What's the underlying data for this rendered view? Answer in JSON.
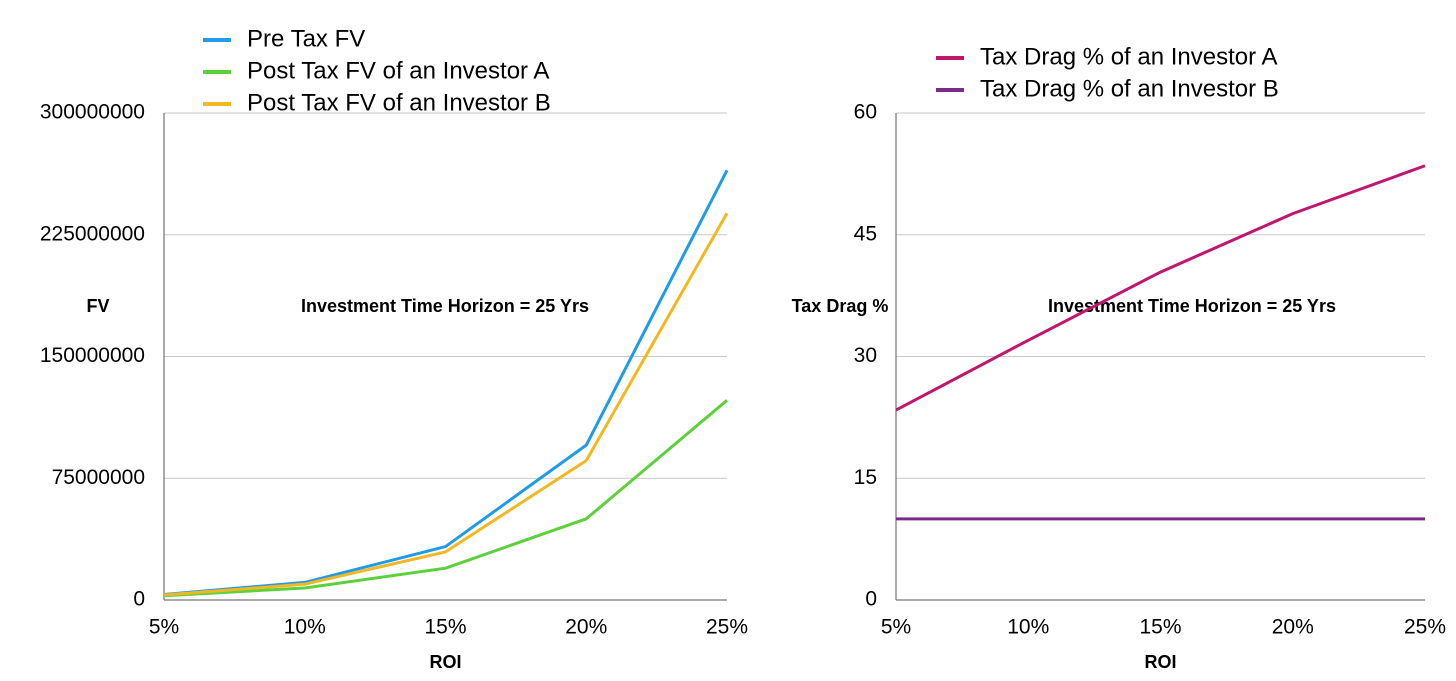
{
  "chart_data": [
    {
      "type": "line",
      "x_label": "ROI",
      "y_label": "FV",
      "annotation": "Investment Time Horizon = 25 Yrs",
      "categories": [
        "5%",
        "10%",
        "15%",
        "20%",
        "25%"
      ],
      "series": [
        {
          "name": "Pre Tax FV",
          "color": "#1f9be8",
          "values": [
            3390000,
            10830000,
            32920000,
            95400000,
            264700000
          ]
        },
        {
          "name": "Post Tax FV of an Investor A",
          "color": "#5cd13c",
          "values": [
            2600000,
            7400000,
            19600000,
            50000000,
            123000000
          ]
        },
        {
          "name": "Post Tax FV of an Investor B",
          "color": "#f2b822",
          "values": [
            3050000,
            9750000,
            29630000,
            85860000,
            238230000
          ]
        }
      ],
      "ylim": [
        0,
        300000000
      ],
      "yticks": [
        0,
        75000000,
        150000000,
        225000000,
        300000000
      ],
      "grid": true
    },
    {
      "type": "line",
      "x_label": "ROI",
      "y_label": "Tax Drag %",
      "annotation": "Investment Time Horizon = 25 Yrs",
      "categories": [
        "5%",
        "10%",
        "15%",
        "20%",
        "25%"
      ],
      "series": [
        {
          "name": "Tax Drag % of an Investor A",
          "color": "#c0166e",
          "values": [
            23.4,
            32,
            40.4,
            47.6,
            53.5
          ]
        },
        {
          "name": "Tax Drag % of an Investor B",
          "color": "#7b2a8c",
          "values": [
            10,
            10,
            10,
            10,
            10
          ]
        }
      ],
      "ylim": [
        0,
        60
      ],
      "yticks": [
        0,
        15,
        30,
        45,
        60
      ],
      "grid": true
    }
  ]
}
